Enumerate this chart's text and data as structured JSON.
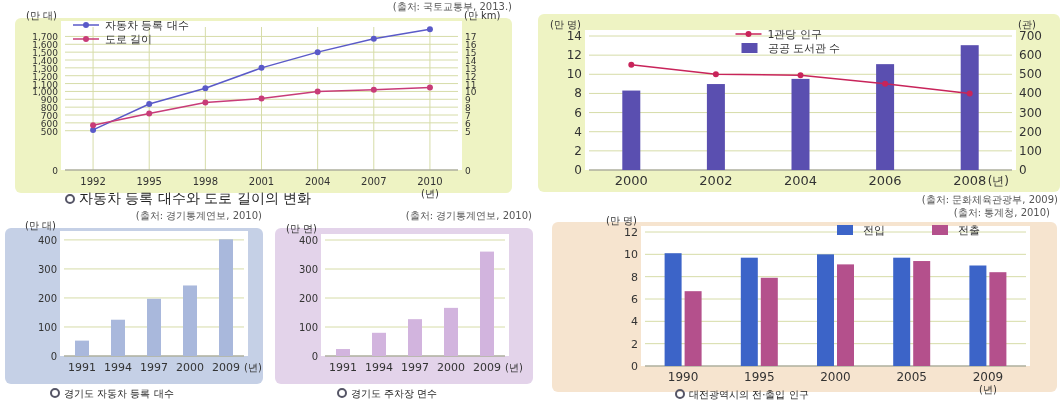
{
  "chart_data": [
    {
      "type": "line",
      "title": "자동차 등록 대수와 도로 길이의 변화",
      "xlabel": "(년)",
      "ylabel": "(만 대)",
      "y2label": "(만 km)",
      "categories": [
        "1992",
        "1995",
        "1998",
        "2001",
        "2004",
        "2007",
        "2010"
      ],
      "series": [
        {
          "name": "자동차 등록 대수",
          "color": "#5a5ac8",
          "values": [
            510,
            840,
            1040,
            1300,
            1500,
            1670,
            1790
          ]
        },
        {
          "name": "도로 길이",
          "color": "#c83c78",
          "axis": "y2",
          "values": [
            5.7,
            7.2,
            8.6,
            9.1,
            10.0,
            10.2,
            10.5
          ]
        }
      ],
      "ylim": [
        0,
        1820
      ],
      "yticks": [
        0,
        500,
        600,
        700,
        800,
        900,
        {
          "value": 1000,
          "label": "1,000"
        },
        {
          "value": 1100,
          "label": "1,100"
        },
        {
          "value": 1200,
          "label": "1,200"
        },
        {
          "value": 1300,
          "label": "1,300"
        },
        {
          "value": 1400,
          "label": "1,400"
        },
        {
          "value": 1500,
          "label": "1,500"
        },
        {
          "value": 1600,
          "label": "1,600"
        },
        {
          "value": 1700,
          "label": "1,700"
        }
      ],
      "y2lim": [
        0,
        18.2
      ],
      "y2ticks": [
        0,
        5,
        6,
        7,
        8,
        9,
        10,
        11,
        12,
        13,
        14,
        15,
        16,
        17
      ],
      "grid": true,
      "legend": "top left",
      "marker": "circle",
      "annotations": [
        "(출처: 국토교통부, 2013.)"
      ]
    },
    {
      "type": "bar",
      "xlabel": "(년)",
      "ylabel": "(만 명)",
      "y2label": "(관)",
      "categories": [
        "2000",
        "2002",
        "2004",
        "2006",
        "2008"
      ],
      "series": [
        {
          "name": "1관당 인구",
          "type": "line",
          "color": "#c8245a",
          "values": [
            11.0,
            10.0,
            9.9,
            9.0,
            8.0
          ]
        },
        {
          "name": "공공 도서관 수",
          "color": "#5a4fb0",
          "axis": "y2",
          "values": [
            415,
            449,
            476,
            553,
            652
          ]
        }
      ],
      "ylim": [
        0,
        14
      ],
      "yticks": [
        0,
        2,
        4,
        6,
        8,
        10,
        12,
        14
      ],
      "y2lim": [
        0,
        700
      ],
      "y2ticks": [
        0,
        100,
        200,
        300,
        400,
        500,
        600,
        700
      ],
      "grid": "y",
      "legend": "top",
      "marker": "circle",
      "annotations": [
        "(출처: 문화체육관광부, 2009)"
      ]
    },
    {
      "type": "bar",
      "title": "경기도 자동차 등록 대수",
      "xlabel": "(년)",
      "ylabel": "(만 대)",
      "categories": [
        "1991",
        "1994",
        "1997",
        "2000",
        "2009"
      ],
      "values": [
        53,
        125,
        197,
        243,
        402
      ],
      "color": "#a9b8dc",
      "ylim": [
        0,
        410
      ],
      "yticks": [
        0,
        100,
        200,
        300,
        400
      ],
      "grid": "y",
      "annotations": [
        "(출처: 경기통계연보, 2010)"
      ]
    },
    {
      "type": "bar",
      "title": "경기도 주차장 면수",
      "xlabel": "(년)",
      "ylabel": "(만 면)",
      "categories": [
        "1991",
        "1994",
        "1997",
        "2000",
        "2009"
      ],
      "values": [
        24,
        80,
        127,
        166,
        360
      ],
      "color": "#d2b4de",
      "ylim": [
        0,
        400
      ],
      "yticks": [
        0,
        100,
        200,
        300,
        400
      ],
      "grid": "y",
      "annotations": [
        "(출처: 경기통계연보, 2010)"
      ]
    },
    {
      "type": "bar",
      "title": "대전광역시의 전·출입 인구",
      "xlabel": "(년)",
      "ylabel": "(만 명)",
      "categories": [
        "1990",
        "1995",
        "2000",
        "2005",
        "2009"
      ],
      "series": [
        {
          "name": "전입",
          "color": "#3c64c8",
          "values": [
            10.1,
            9.7,
            10.0,
            9.7,
            9.0
          ]
        },
        {
          "name": "전출",
          "color": "#b4508c",
          "values": [
            6.7,
            7.9,
            9.1,
            9.4,
            8.4
          ]
        }
      ],
      "ylim": [
        0,
        12
      ],
      "yticks": [
        0,
        2,
        4,
        6,
        8,
        10,
        12
      ],
      "grid": "y",
      "legend": "top right",
      "annotations": [
        "(출처: 통계청, 2010)"
      ]
    }
  ]
}
